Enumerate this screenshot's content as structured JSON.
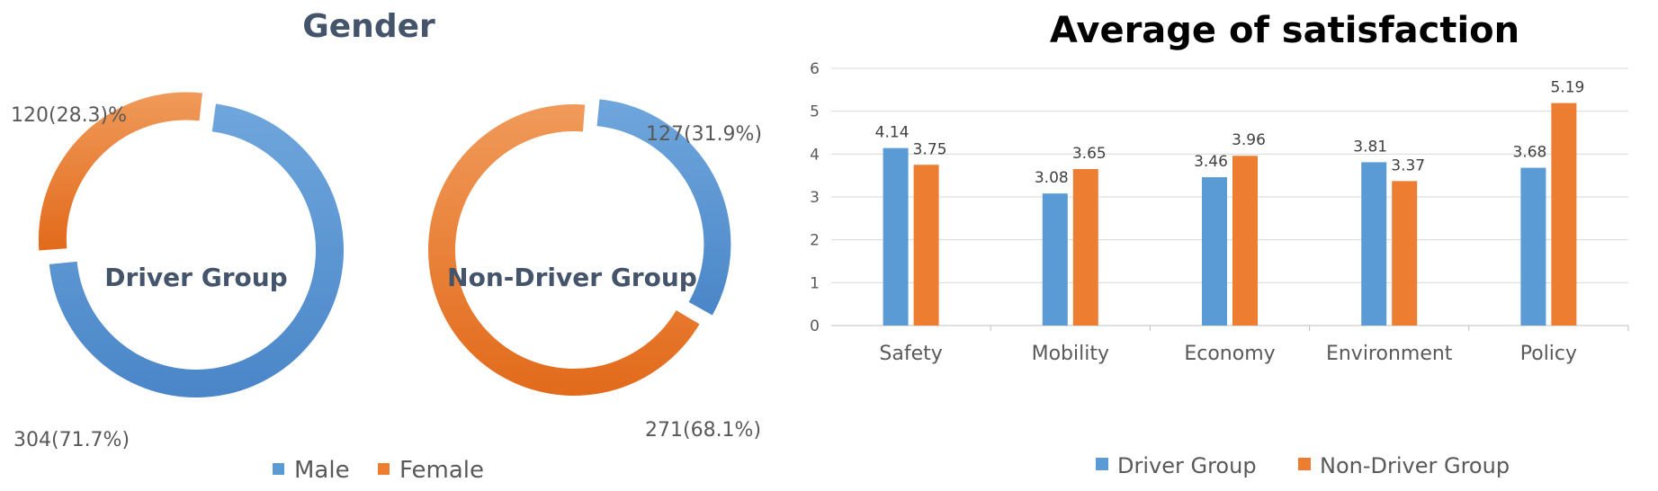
{
  "chart_data": [
    {
      "type": "pie",
      "title": "Gender",
      "donuts": [
        {
          "center_label": "Driver Group",
          "slices": [
            {
              "category": "Male",
              "value": 304,
              "label": "304(71.7%)"
            },
            {
              "category": "Female",
              "value": 120,
              "label": "120(28.3)%"
            }
          ]
        },
        {
          "center_label": "Non-Driver Group",
          "slices": [
            {
              "category": "Male",
              "value": 127,
              "label": "127(31.9%)"
            },
            {
              "category": "Female",
              "value": 271,
              "label": "271(68.1%)"
            }
          ]
        }
      ],
      "legend": {
        "placement": "bottom",
        "entries": [
          {
            "name": "Male",
            "color": "#5b9bd5"
          },
          {
            "name": "Female",
            "color": "#ed7d31"
          }
        ]
      }
    },
    {
      "type": "bar",
      "title": "Average of satisfaction",
      "categories": [
        "Safety",
        "Mobility",
        "Economy",
        "Environment",
        "Policy"
      ],
      "series": [
        {
          "name": "Driver Group",
          "values": [
            4.14,
            3.08,
            3.46,
            3.81,
            3.68
          ],
          "labels": [
            "4.14",
            "3.08",
            "3.46",
            "3.81",
            "3.68"
          ],
          "color": "#5b9bd5"
        },
        {
          "name": "Non-Driver Group",
          "values": [
            3.75,
            3.65,
            3.96,
            3.37,
            5.19
          ],
          "labels": [
            "3.75",
            "3.65",
            "3.96",
            "3.37",
            "5.19"
          ],
          "color": "#ed7d31"
        }
      ],
      "ylim": [
        0,
        6
      ],
      "yticks": [
        "0",
        "1",
        "2",
        "3",
        "4",
        "5",
        "6"
      ],
      "grid": true,
      "legend": {
        "placement": "bottom"
      }
    }
  ]
}
